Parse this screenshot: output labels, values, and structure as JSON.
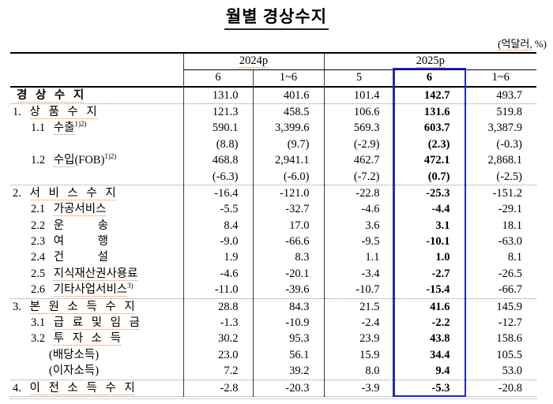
{
  "title": "월별 경상수지",
  "unit_note": {
    "word": "(억달러,",
    "rest": " %)"
  },
  "colors": {
    "highlight_border": "#2323d6",
    "spellcheck_underline": "#e8833a"
  },
  "table": {
    "group_headers": [
      {
        "label": "2024p",
        "span": 2
      },
      {
        "label": "2025p",
        "span": 3
      }
    ],
    "col_headers": [
      "6",
      "1~6",
      "5",
      "6",
      "1~6"
    ],
    "highlight_col": 3,
    "rows": [
      {
        "prefix": "",
        "kor": "경 상 수 지",
        "type": "main",
        "dotted": true,
        "sep": false,
        "values": [
          "131.0",
          "401.6",
          "101.4",
          "142.7",
          "493.7"
        ]
      },
      {
        "prefix": "1. ",
        "kor": "상 품 수 지",
        "type": "sec",
        "dotted": true,
        "sep": true,
        "values": [
          "121.3",
          "458.5",
          "106.6",
          "131.6",
          "519.8"
        ]
      },
      {
        "prefix": "1.1 ",
        "kor": "수출",
        "sup": "1)2)",
        "type": "sub",
        "dotted": true,
        "sep": false,
        "values": [
          "590.1",
          "3,399.6",
          "569.3",
          "603.7",
          "3,387.9"
        ]
      },
      {
        "type": "empty",
        "sep": false,
        "values": [
          "(8.8)",
          "(9.7)",
          "(-2.9)",
          "(2.3)",
          "(-0.3)"
        ]
      },
      {
        "prefix": "1.2 ",
        "kor": "수입",
        "post": "(FOB)",
        "sup": "1)2)",
        "type": "sub",
        "dotted": true,
        "sep": false,
        "values": [
          "468.8",
          "2,941.1",
          "462.7",
          "472.1",
          "2,868.1"
        ]
      },
      {
        "type": "empty",
        "sep": false,
        "values": [
          "(-6.3)",
          "(-6.0)",
          "(-7.2)",
          "(0.7)",
          "(-2.5)"
        ]
      },
      {
        "prefix": "2. ",
        "kor": "서 비 스 수 지",
        "type": "sec",
        "dotted": true,
        "sep": true,
        "values": [
          "-16.4",
          "-121.0",
          "-22.8",
          "-25.3",
          "-151.2"
        ]
      },
      {
        "prefix": "2.1 ",
        "kor": "가공서비스",
        "type": "sub",
        "dotted": true,
        "sep": false,
        "values": [
          "-5.5",
          "-32.7",
          "-4.6",
          "-4.4",
          "-29.1"
        ]
      },
      {
        "prefix": "2.2 ",
        "kor": "운    송",
        "type": "sub",
        "dotted": false,
        "sep": false,
        "values": [
          "8.4",
          "17.0",
          "3.6",
          "3.1",
          "18.1"
        ]
      },
      {
        "prefix": "2.3 ",
        "kor": "여    행",
        "type": "sub",
        "dotted": false,
        "sep": false,
        "values": [
          "-9.0",
          "-66.6",
          "-9.5",
          "-10.1",
          "-63.0"
        ]
      },
      {
        "prefix": "2.4 ",
        "kor": "건    설",
        "type": "sub",
        "dotted": false,
        "sep": false,
        "values": [
          "1.9",
          "8.3",
          "1.1",
          "1.0",
          "8.1"
        ]
      },
      {
        "prefix": "2.5 ",
        "kor": "지식재산권사용료",
        "type": "sub",
        "dotted": true,
        "sep": false,
        "values": [
          "-4.6",
          "-20.1",
          "-3.4",
          "-2.7",
          "-26.5"
        ]
      },
      {
        "prefix": "2.6 ",
        "kor": "기타사업서비스",
        "sup": "3)",
        "type": "sub",
        "dotted": true,
        "sep": false,
        "values": [
          "-11.0",
          "-39.6",
          "-10.7",
          "-15.4",
          "-66.7"
        ]
      },
      {
        "prefix": "3. ",
        "kor": "본 원 소 득 수 지",
        "type": "sec",
        "dotted": true,
        "sep": true,
        "values": [
          "28.8",
          "84.3",
          "21.5",
          "41.6",
          "145.9"
        ]
      },
      {
        "prefix": "3.1 ",
        "kor": "급 료 및 임 금",
        "type": "sub",
        "dotted": true,
        "sep": false,
        "values": [
          "-1.3",
          "-10.9",
          "-2.4",
          "-2.2",
          "-12.7"
        ]
      },
      {
        "prefix": "3.2 ",
        "kor": "투 자 소 득",
        "type": "sub",
        "dotted": true,
        "sep": false,
        "values": [
          "30.2",
          "95.3",
          "23.9",
          "43.8",
          "158.6"
        ]
      },
      {
        "prefix": "",
        "kor": "(배당소득)",
        "type": "paren",
        "dotted": false,
        "sep": false,
        "values": [
          "23.0",
          "56.1",
          "15.9",
          "34.4",
          "105.5"
        ]
      },
      {
        "prefix": "",
        "kor": "(이자소득)",
        "type": "paren",
        "dotted": false,
        "sep": false,
        "values": [
          "7.2",
          "39.2",
          "8.0",
          "9.4",
          "53.0"
        ]
      },
      {
        "prefix": "4. ",
        "kor": "이 전 소 득 수 지",
        "type": "sec",
        "dotted": true,
        "sep": true,
        "values": [
          "-2.8",
          "-20.3",
          "-3.9",
          "-5.3",
          "-20.8"
        ]
      }
    ]
  }
}
